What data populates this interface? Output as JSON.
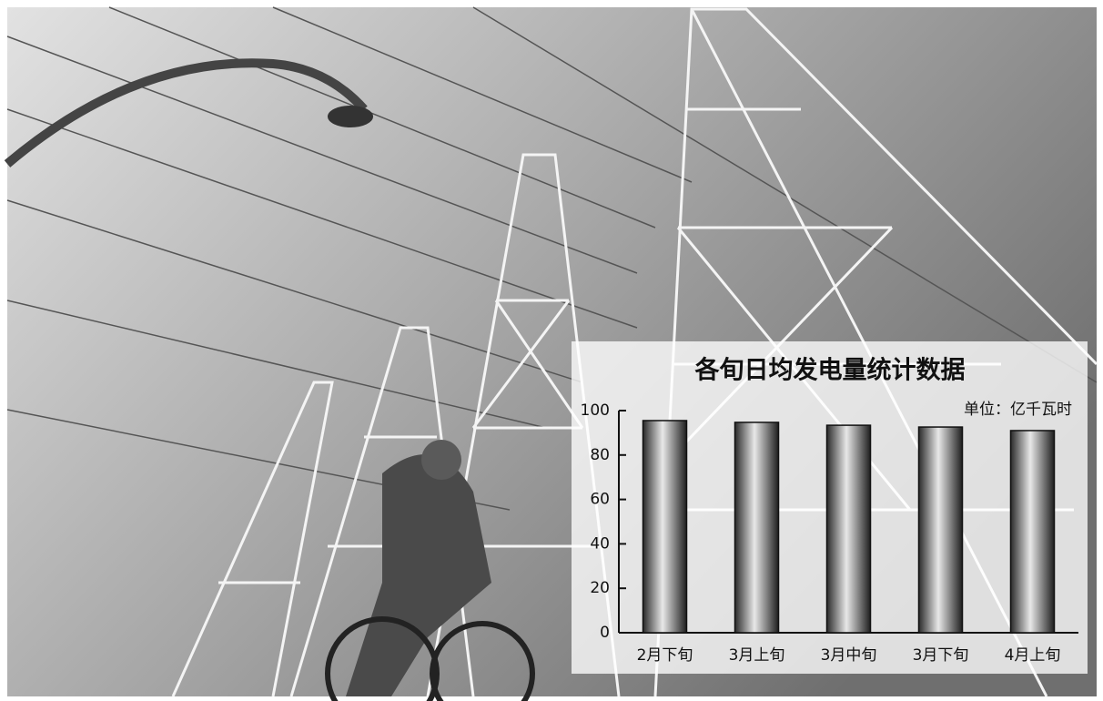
{
  "chart_data": {
    "type": "bar",
    "title": "各旬日均发电量统计数据",
    "unit": "单位：亿千瓦时",
    "categories": [
      "2月下旬",
      "3月上旬",
      "3月中旬",
      "3月下旬",
      "4月上旬"
    ],
    "values": [
      95.5,
      94.7,
      93.4,
      92.6,
      91.0
    ],
    "ylim": [
      0,
      100
    ],
    "yticks": [
      0,
      20,
      40,
      60,
      80,
      100
    ],
    "color": "#777777"
  }
}
